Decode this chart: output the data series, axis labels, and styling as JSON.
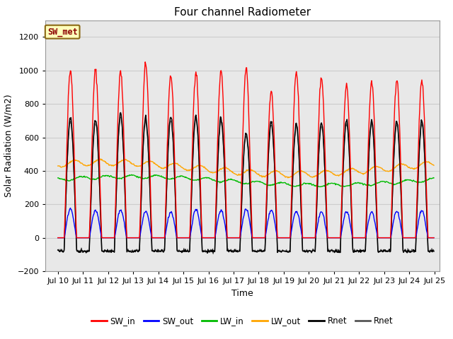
{
  "title": "Four channel Radiometer",
  "xlabel": "Time",
  "ylabel": "Solar Radiation (W/m2)",
  "ylim": [
    -200,
    1300
  ],
  "yticks": [
    -200,
    0,
    200,
    400,
    600,
    800,
    1000,
    1200
  ],
  "xlim_days": [
    9.5,
    25.2
  ],
  "xtick_days": [
    10,
    11,
    12,
    13,
    14,
    15,
    16,
    17,
    18,
    19,
    20,
    21,
    22,
    23,
    24,
    25
  ],
  "xtick_labels": [
    "Jul 10",
    "Jul 11",
    "Jul 12",
    "Jul 13",
    "Jul 14",
    "Jul 15",
    "Jul 16",
    "Jul 17",
    "Jul 18",
    "Jul 19",
    "Jul 20",
    "Jul 21",
    "Jul 22",
    "Jul 23",
    "Jul 24",
    "Jul 25"
  ],
  "annotation_text": "SW_met",
  "annotation_facecolor": "#FFFFBB",
  "annotation_edgecolor": "#8B6914",
  "annotation_textcolor": "#8B0000",
  "legend_entries": [
    {
      "label": "SW_in",
      "color": "#FF0000"
    },
    {
      "label": "SW_out",
      "color": "#0000FF"
    },
    {
      "label": "LW_in",
      "color": "#00BB00"
    },
    {
      "label": "LW_out",
      "color": "#FFA500"
    },
    {
      "label": "Rnet",
      "color": "#000000"
    },
    {
      "label": "Rnet",
      "color": "#555555"
    }
  ],
  "grid_color": "#CCCCCC",
  "bg_color": "#E8E8E8",
  "fig_bg_color": "#FFFFFF",
  "sw_in_peaks": [
    1005,
    1000,
    990,
    1040,
    970,
    995,
    990,
    1010,
    875,
    995,
    960,
    910,
    930,
    940
  ],
  "sw_out_peaks": [
    175,
    165,
    165,
    155,
    155,
    170,
    165,
    170,
    165,
    160,
    155,
    155,
    155,
    160
  ],
  "lw_in_base": 340,
  "lw_in_amp": 25,
  "lw_out_base": 415,
  "lw_out_amp": 35,
  "rnet_peaks": [
    720,
    710,
    740,
    715,
    725,
    725,
    720,
    630,
    695,
    680,
    690,
    700,
    695,
    695
  ],
  "rnet_night": -80,
  "title_fontsize": 11,
  "label_fontsize": 9,
  "tick_fontsize": 8,
  "legend_fontsize": 8.5
}
